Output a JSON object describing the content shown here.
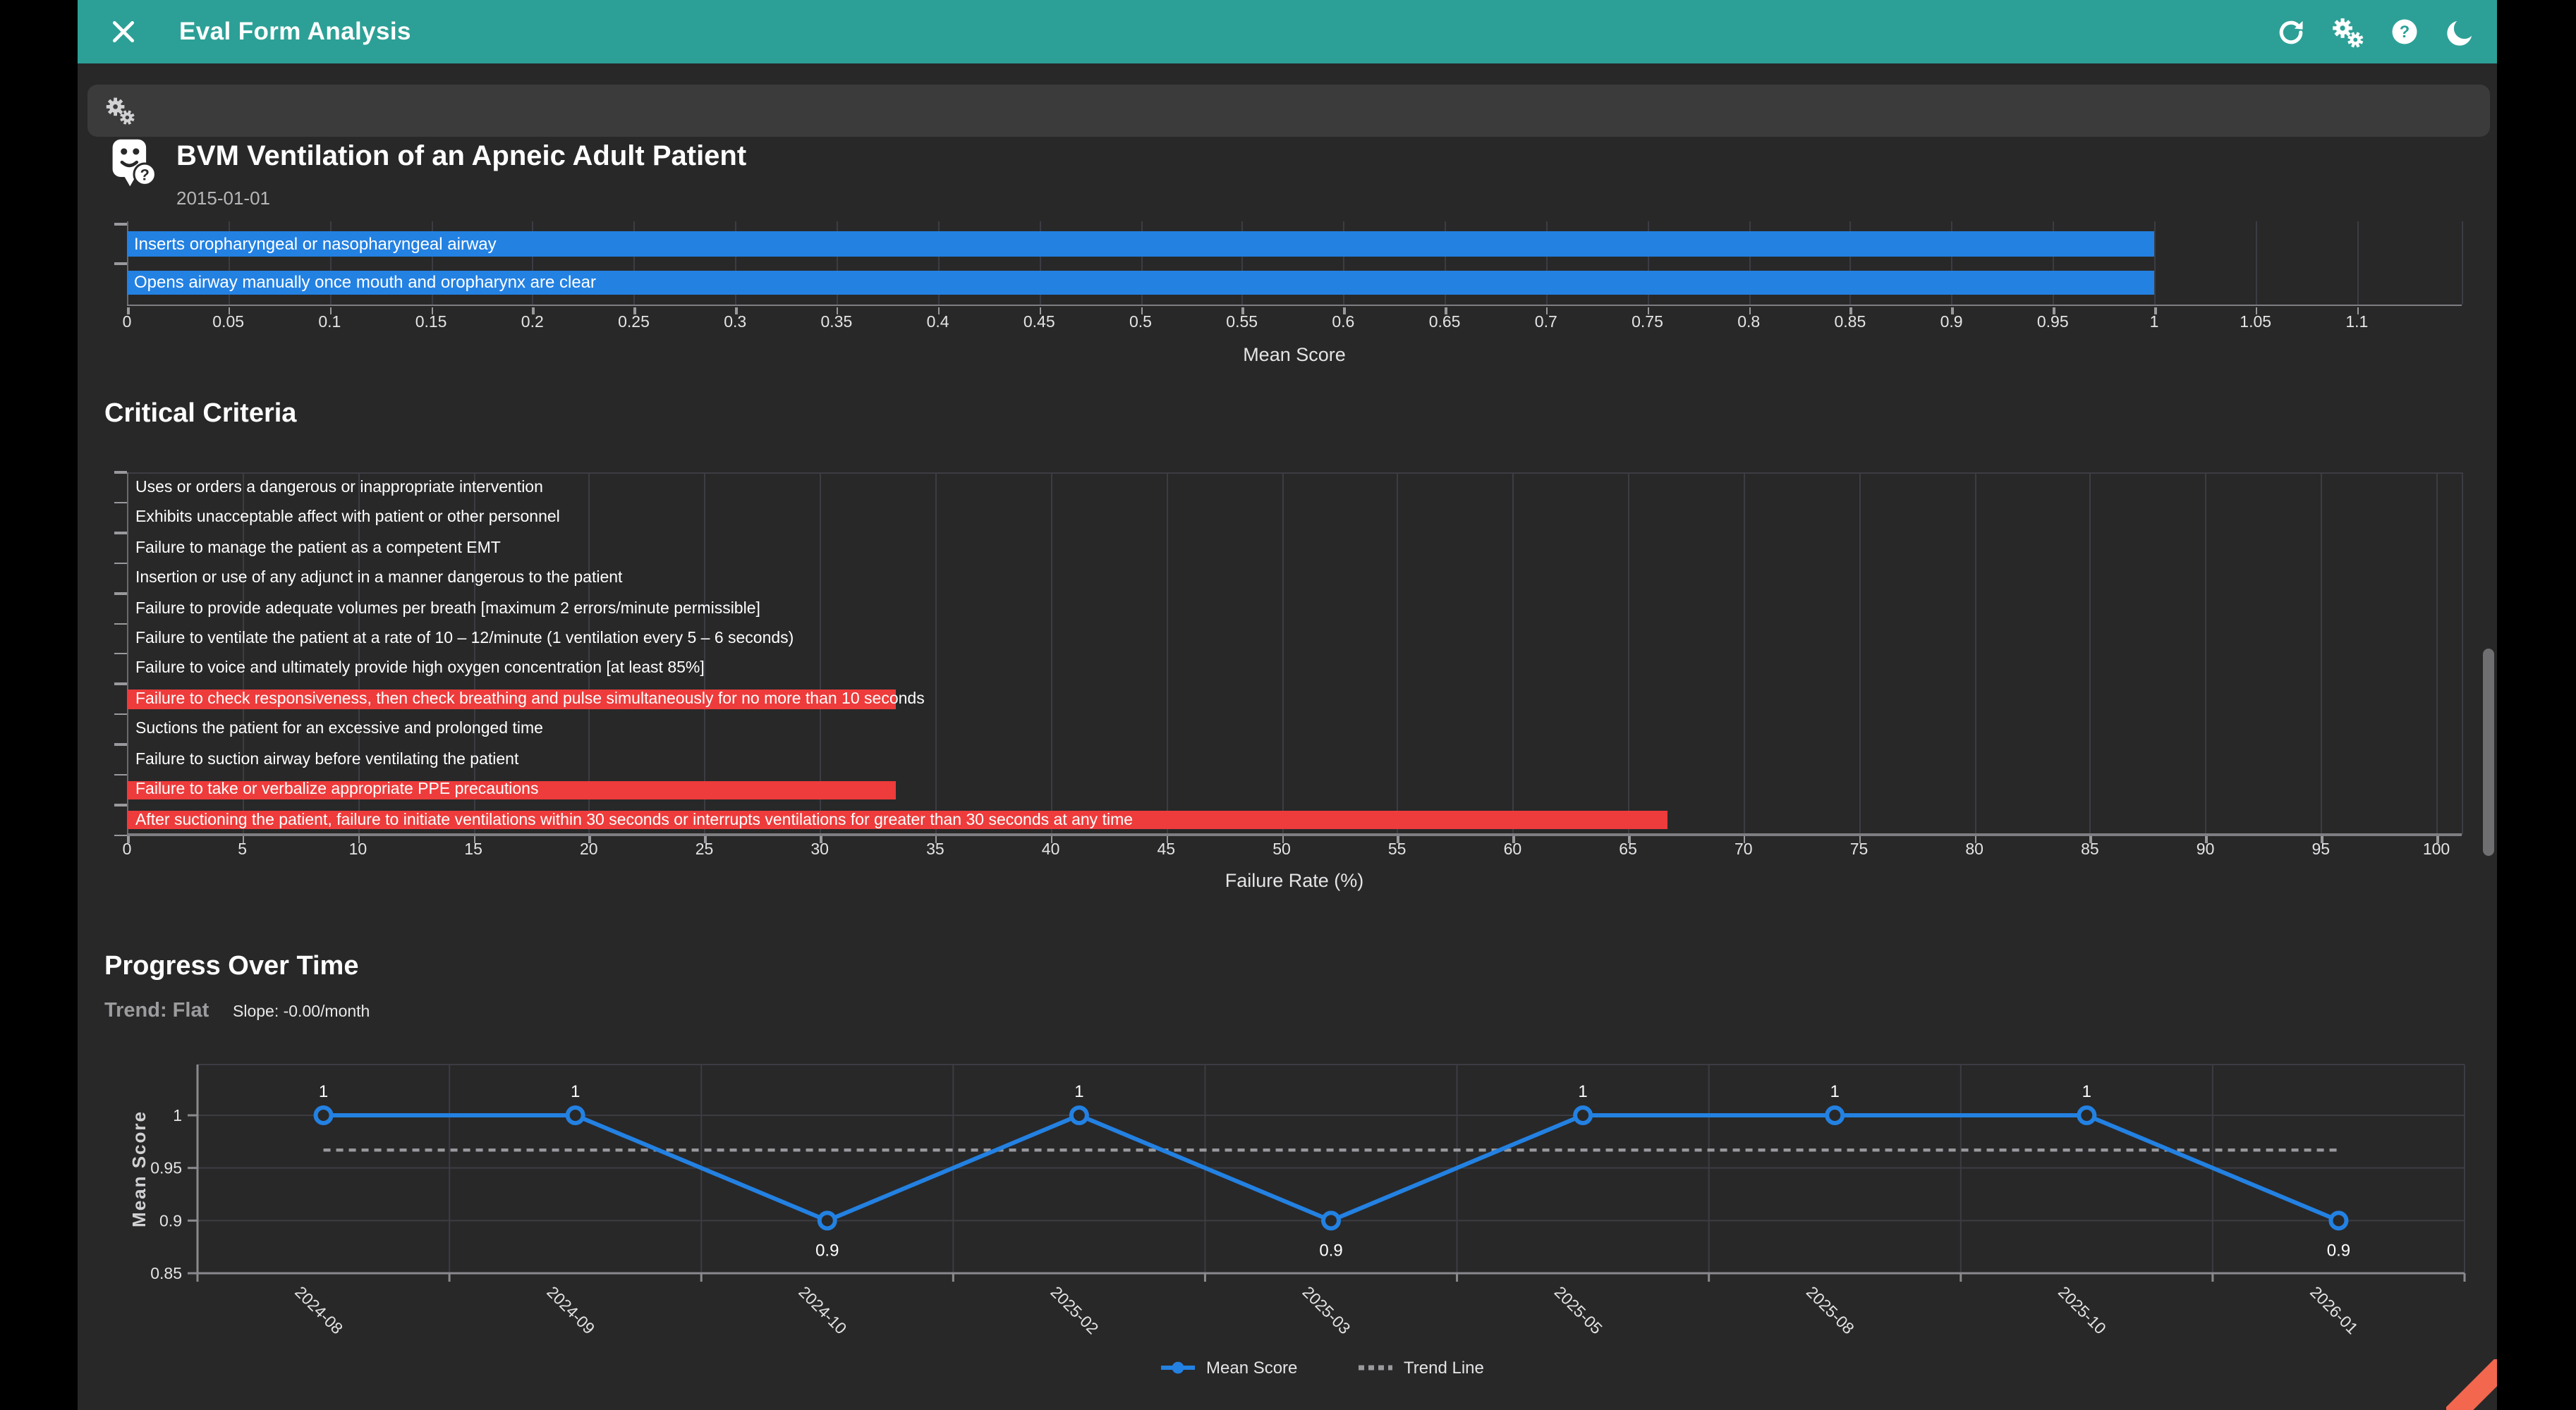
{
  "header": {
    "title": "Eval Form Analysis",
    "icons": {
      "close": "x-cross",
      "refresh": "circular-arrow",
      "settings": "double-gears",
      "help": "question-circle",
      "dark_mode": "crescent-moon"
    }
  },
  "toolbar": {
    "icon": "double-gears"
  },
  "report": {
    "title": "BVM Ventilation of an Apneic Adult Patient",
    "date": "2015-01-01",
    "icon": "bvm-mask-badge"
  },
  "sections": {
    "critical_criteria_title": "Critical Criteria",
    "progress_title": "Progress Over Time",
    "trend_label": "Trend: Flat",
    "slope_label": "Slope: -0.00/month"
  },
  "colors": {
    "accent_teal": "#2ca096",
    "bar_blue": "#2381e2",
    "bar_red": "#ee3b3b",
    "trend_gray": "#9a9a9e",
    "background": "#282829",
    "ribbon_orange": "#f3674e"
  },
  "chart_data": [
    {
      "id": "skill_mean_scores",
      "type": "bar",
      "orientation": "horizontal",
      "categories": [
        "Inserts oropharyngeal or nasopharyngeal airway",
        "Opens airway manually once mouth and oropharynx are clear"
      ],
      "values": [
        1,
        1
      ],
      "xlabel": "Mean Score",
      "xlim": [
        0,
        1.1
      ],
      "xtick_step": 0.05,
      "grid": true,
      "bar_color": "#2381e2",
      "note_top_clipped": true
    },
    {
      "id": "critical_criteria",
      "type": "bar",
      "orientation": "horizontal",
      "title": "Critical Criteria",
      "categories": [
        "Uses or orders a dangerous or inappropriate intervention",
        "Exhibits unacceptable affect with patient or other personnel",
        "Failure to manage the patient as a competent EMT",
        "Insertion or use of any adjunct in a manner dangerous to the patient",
        "Failure to provide adequate volumes per breath [maximum 2 errors/minute permissible]",
        "Failure to ventilate the patient at a rate of 10 – 12/minute (1 ventilation every 5 – 6 seconds)",
        "Failure to voice and ultimately provide high oxygen concentration [at least 85%]",
        "Failure to check responsiveness, then check breathing and pulse simultaneously for no more than 10 seconds",
        "Suctions the patient for an excessive and prolonged time",
        "Failure to suction airway before ventilating the patient",
        "Failure to take or verbalize appropriate PPE precautions",
        "After suctioning the patient, failure to initiate ventilations within 30 seconds or interrupts ventilations for greater than 30 seconds at any time"
      ],
      "values": [
        0,
        0,
        0,
        0,
        0,
        0,
        0,
        33.3,
        0,
        0,
        33.3,
        66.7
      ],
      "xlabel": "Failure Rate (%)",
      "xlim": [
        0,
        100
      ],
      "xtick_step": 5,
      "grid": true,
      "bar_color": "#ee3b3b"
    },
    {
      "id": "progress_over_time",
      "type": "line",
      "title": "Progress Over Time",
      "x": [
        "2024-08",
        "2024-09",
        "2024-10",
        "2025-02",
        "2025-03",
        "2025-05",
        "2025-08",
        "2025-10",
        "2026-01"
      ],
      "series": [
        {
          "name": "Mean Score",
          "values": [
            1,
            1,
            0.9,
            1,
            0.9,
            1,
            1,
            1,
            0.9
          ],
          "color": "#2381e2",
          "marker": "hollow-circle"
        },
        {
          "name": "Trend Line",
          "style": "dashed",
          "value": 0.967,
          "color": "#9a9a9e"
        }
      ],
      "ylabel": "Mean Score",
      "yticks": [
        0.85,
        0.9,
        0.95,
        1
      ],
      "ylim": [
        0.85,
        1.048
      ],
      "grid": true,
      "legend_position": "bottom"
    }
  ]
}
